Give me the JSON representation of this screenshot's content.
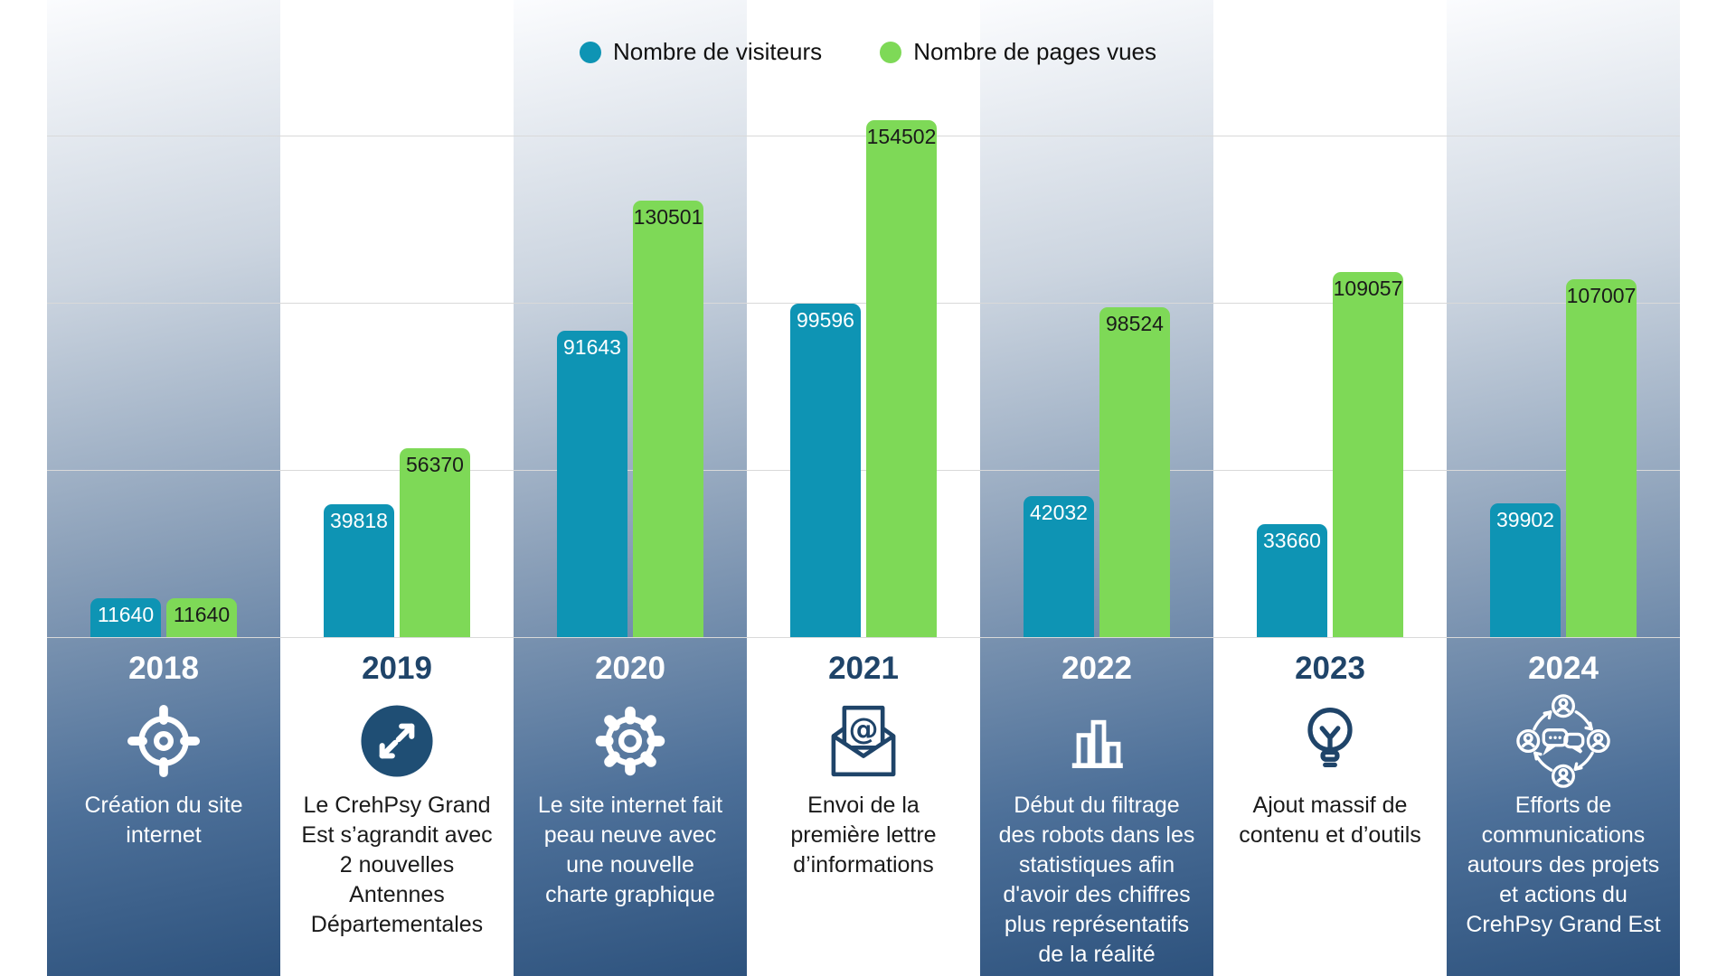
{
  "legend": {
    "items": [
      {
        "label": "Nombre de visiteurs",
        "color": "#0e94b4"
      },
      {
        "label": "Nombre de pages vues",
        "color": "#7ed957"
      }
    ]
  },
  "chart_data": {
    "type": "bar",
    "title": "",
    "categories": [
      "2018",
      "2019",
      "2020",
      "2021",
      "2022",
      "2023",
      "2024"
    ],
    "series": [
      {
        "name": "Nombre de visiteurs",
        "color": "#0e94b4",
        "values": [
          11640,
          39818,
          91643,
          99596,
          42032,
          33660,
          39902
        ]
      },
      {
        "name": "Nombre de pages vues",
        "color": "#7ed957",
        "values": [
          11640,
          56370,
          130501,
          154502,
          98524,
          109057,
          107007
        ]
      }
    ],
    "ylim": [
      0,
      190000
    ],
    "gridlines": [
      50000,
      100000,
      150000
    ],
    "grid": true,
    "legend_position": "top-center",
    "value_labels": "inside-top"
  },
  "columns": [
    {
      "year": "2018",
      "icon": "target-icon",
      "theme": "blue",
      "description": "Création du site\ninternet"
    },
    {
      "year": "2019",
      "icon": "expand-arrows-icon",
      "theme": "white",
      "description": "Le CrehPsy Grand\nEst s’agrandit avec\n2 nouvelles\nAntennes\nDépartementales"
    },
    {
      "year": "2020",
      "icon": "gear-icon",
      "theme": "blue",
      "description": "Le site internet fait\npeau neuve avec\nune nouvelle\ncharte graphique"
    },
    {
      "year": "2021",
      "icon": "envelope-at-icon",
      "theme": "white",
      "description": "Envoi de la\npremière lettre\nd’informations"
    },
    {
      "year": "2022",
      "icon": "bar-chart-icon",
      "theme": "blue",
      "description": "Début du filtrage\ndes robots dans les\nstatistiques afin\nd'avoir des chiffres\nplus représentatifs\nde la réalité"
    },
    {
      "year": "2023",
      "icon": "lightbulb-icon",
      "theme": "white",
      "description": "Ajout massif de\ncontenu et d’outils"
    },
    {
      "year": "2024",
      "icon": "people-network-icon",
      "theme": "blue",
      "description": "Efforts de\ncommunications\nautours des projets\net actions du\nCrehPsy Grand Est"
    }
  ]
}
